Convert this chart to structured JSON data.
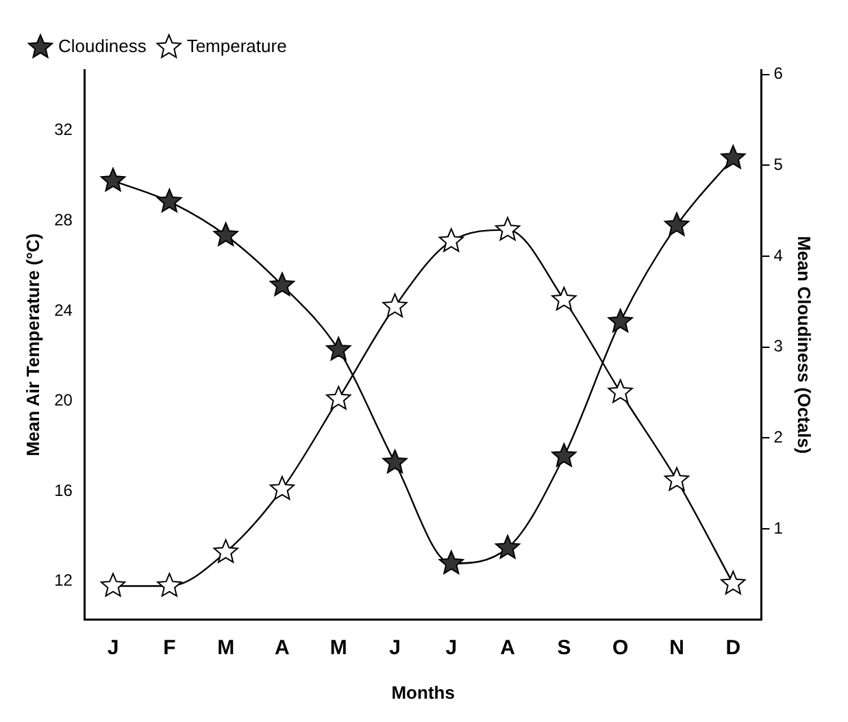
{
  "chart_data": {
    "type": "line",
    "xlabel": "Months",
    "ylabel": "Mean Air Temperature (°C)",
    "y2label": "Mean Cloudiness (Octals)",
    "categories": [
      "J",
      "F",
      "M",
      "A",
      "M",
      "J",
      "J",
      "A",
      "S",
      "O",
      "N",
      "D"
    ],
    "series": [
      {
        "name": "Cloudiness",
        "color": "#333333",
        "axis": "y2",
        "values": [
          4.83,
          4.6,
          4.23,
          3.68,
          2.97,
          1.73,
          0.62,
          0.79,
          1.8,
          3.28,
          4.34,
          5.08
        ]
      },
      {
        "name": "Temperature",
        "color": "#ffffff",
        "values": [
          11.8,
          11.8,
          13.3,
          16.1,
          20.1,
          24.2,
          27.1,
          27.6,
          24.5,
          20.4,
          16.5,
          11.9
        ]
      }
    ],
    "ylim": [
      10.3,
      34.7
    ],
    "yticks": [
      12,
      16,
      20,
      24,
      28,
      32
    ],
    "y2lim": [
      0,
      6.05
    ],
    "y2ticks": [
      1,
      2,
      3,
      4,
      5,
      6
    ],
    "marker": "star",
    "line_style": "solid",
    "grid": false,
    "legend": "top left"
  }
}
